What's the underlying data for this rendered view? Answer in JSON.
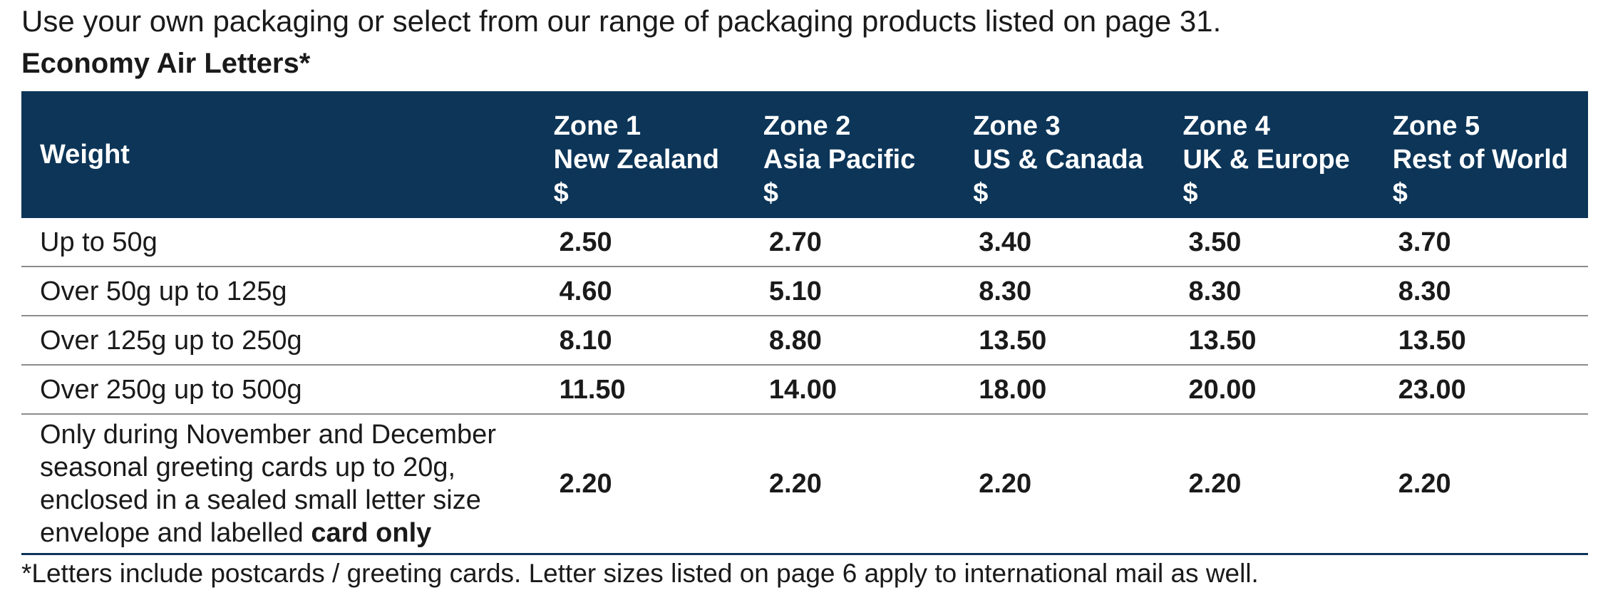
{
  "intro_text": "Use your own packaging or select from our range of packaging products listed on page 31.",
  "table_title": "Economy Air Letters*",
  "header": {
    "weight_label": "Weight",
    "zones": [
      {
        "zone": "Zone 1",
        "region": "New Zealand",
        "currency": "$"
      },
      {
        "zone": "Zone 2",
        "region": "Asia Pacific",
        "currency": "$"
      },
      {
        "zone": "Zone 3",
        "region": "US & Canada",
        "currency": "$"
      },
      {
        "zone": "Zone 4",
        "region": "UK & Europe",
        "currency": "$"
      },
      {
        "zone": "Zone 5",
        "region": "Rest of World",
        "currency": "$"
      }
    ]
  },
  "rows": [
    {
      "weight": "Up to 50g",
      "prices": [
        "2.50",
        "2.70",
        "3.40",
        "3.50",
        "3.70"
      ]
    },
    {
      "weight": "Over 50g up to 125g",
      "prices": [
        "4.60",
        "5.10",
        "8.30",
        "8.30",
        "8.30"
      ]
    },
    {
      "weight": "Over 125g up to 250g",
      "prices": [
        "8.10",
        "8.80",
        "13.50",
        "13.50",
        "13.50"
      ]
    },
    {
      "weight": "Over 250g up to 500g",
      "prices": [
        "11.50",
        "14.00",
        "18.00",
        "20.00",
        "23.00"
      ]
    },
    {
      "weight": "Only during November and December seasonal greeting cards up to 20g, enclosed in a sealed small letter size envelope and labelled",
      "weight_bold": "card only",
      "prices": [
        "2.20",
        "2.20",
        "2.20",
        "2.20",
        "2.20"
      ]
    }
  ],
  "footnote": "*Letters include postcards / greeting cards.  Letter sizes listed on page 6 apply to international mail as well.",
  "colors": {
    "header_bg": "#0c3558",
    "header_text": "#ffffff",
    "row_divider": "#8c8c8c"
  }
}
